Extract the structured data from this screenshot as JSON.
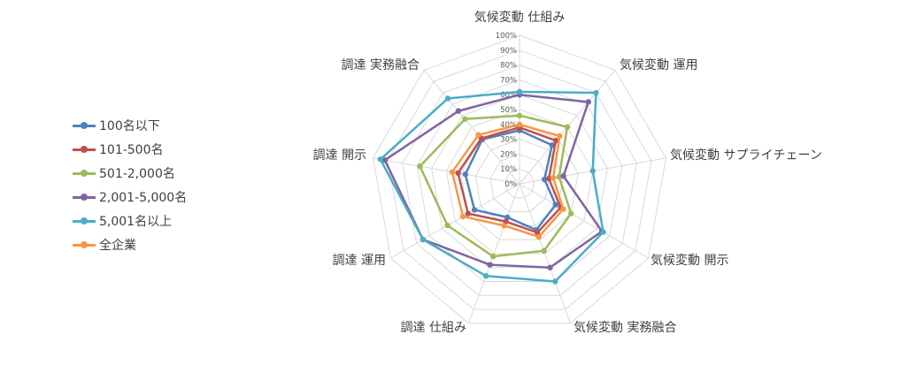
{
  "chart_data": {
    "type": "radar",
    "axes": [
      "気候変動 仕組み",
      "気候変動 運用",
      "気候変動 サプライチェーン",
      "気候変動 開示",
      "気候変動 実務融合",
      "調達 仕組み",
      "調達 運用",
      "調達 開示",
      "調達 実務融合"
    ],
    "rlim": [
      0,
      100
    ],
    "ticks": [
      "0%",
      "10%",
      "20%",
      "30%",
      "40%",
      "50%",
      "60%",
      "70%",
      "80%",
      "90%",
      "100%"
    ],
    "grid": true,
    "legend_position": "left",
    "series": [
      {
        "name": "100名以下",
        "color": "#4F81BD",
        "values": [
          36,
          34,
          17,
          28,
          33,
          24,
          35,
          37,
          39
        ]
      },
      {
        "name": "101-500名",
        "color": "#C0504D",
        "values": [
          38,
          38,
          20,
          32,
          35,
          27,
          40,
          42,
          40
        ]
      },
      {
        "name": "501-2,000名",
        "color": "#9BBB59",
        "values": [
          46,
          50,
          27,
          40,
          48,
          52,
          56,
          68,
          57
        ]
      },
      {
        "name": "2,001-5,000名",
        "color": "#8064A2",
        "values": [
          60,
          72,
          30,
          64,
          60,
          58,
          75,
          92,
          64
        ]
      },
      {
        "name": "5,001名以上",
        "color": "#4BACC6",
        "values": [
          62,
          80,
          50,
          65,
          70,
          66,
          75,
          95,
          75
        ]
      },
      {
        "name": "全企業",
        "color": "#F79646",
        "values": [
          40,
          42,
          23,
          34,
          38,
          30,
          44,
          46,
          43
        ]
      }
    ]
  }
}
